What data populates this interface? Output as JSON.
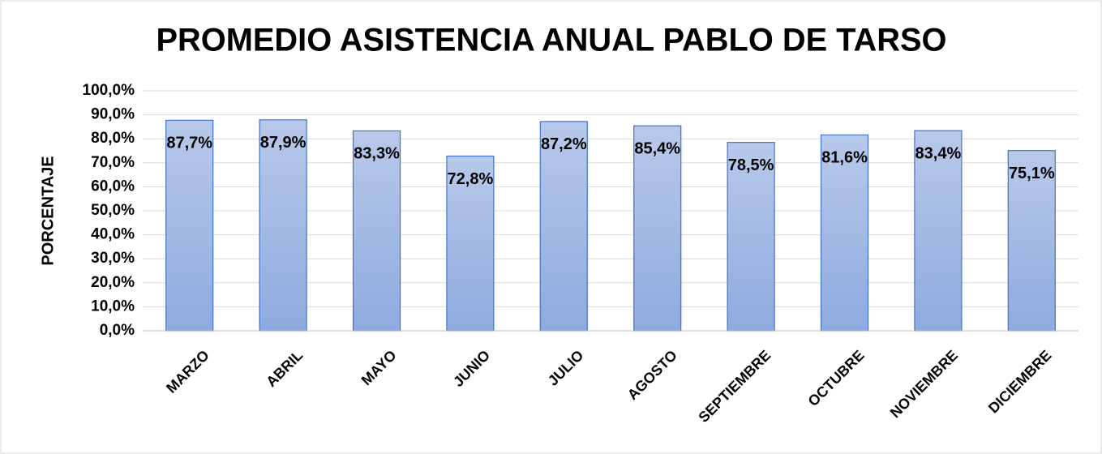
{
  "chart_data": {
    "type": "bar",
    "title": "PROMEDIO ASISTENCIA ANUAL PABLO DE TARSO",
    "y_label": "PORCENTAJE",
    "categories": [
      "MARZO",
      "ABRIL",
      "MAYO",
      "JUNIO",
      "JULIO",
      "AGOSTO",
      "SEPTIEMBRE",
      "OCTUBRE",
      "NOVIEMBRE",
      "DICIEMBRE"
    ],
    "values": [
      87.7,
      87.9,
      83.3,
      72.8,
      87.2,
      85.4,
      78.5,
      81.6,
      83.4,
      75.1
    ],
    "value_labels": [
      "87,7%",
      "87,9%",
      "83,3%",
      "72,8%",
      "87,2%",
      "85,4%",
      "78,5%",
      "81,6%",
      "83,4%",
      "75,1%"
    ],
    "color": "#4472c4",
    "ylim": [
      0,
      100
    ],
    "yticks": [
      {
        "value": 0,
        "label": "0,0%"
      },
      {
        "value": 10,
        "label": "10,0%"
      },
      {
        "value": 20,
        "label": "20,0%"
      },
      {
        "value": 30,
        "label": "30,0%"
      },
      {
        "value": 40,
        "label": "40,0%"
      },
      {
        "value": 50,
        "label": "50,0%"
      },
      {
        "value": 60,
        "label": "60,0%"
      },
      {
        "value": 70,
        "label": "70,0%"
      },
      {
        "value": 80,
        "label": "80,0%"
      },
      {
        "value": 90,
        "label": "90,0%"
      },
      {
        "value": 100,
        "label": "100,0%"
      }
    ],
    "grid": true
  }
}
